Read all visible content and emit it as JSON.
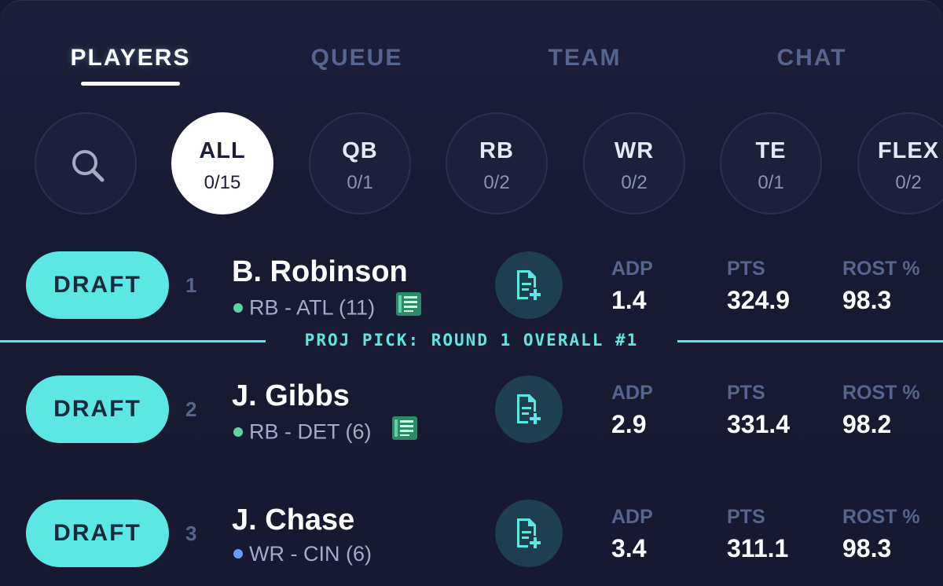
{
  "tabs": [
    {
      "label": "PLAYERS",
      "active": true
    },
    {
      "label": "QUEUE",
      "active": false
    },
    {
      "label": "TEAM",
      "active": false
    },
    {
      "label": "CHAT",
      "active": false
    }
  ],
  "filters": {
    "search_icon": "search-icon",
    "items": [
      {
        "pos": "ALL",
        "count": "0/15",
        "active": true
      },
      {
        "pos": "QB",
        "count": "0/1"
      },
      {
        "pos": "RB",
        "count": "0/2"
      },
      {
        "pos": "WR",
        "count": "0/2"
      },
      {
        "pos": "TE",
        "count": "0/1"
      },
      {
        "pos": "FLEX",
        "count": "0/2"
      }
    ]
  },
  "draft_label": "DRAFT",
  "stat_labels": {
    "adp": "ADP",
    "pts": "PTS",
    "rost": "ROST %"
  },
  "proj_pick": "PROJ PICK: ROUND 1 OVERALL #1",
  "players": [
    {
      "rank": "1",
      "name": "B. Robinson",
      "pos": "RB",
      "team": "- ATL (11)",
      "has_news": true,
      "adp": "1.4",
      "pts": "324.9",
      "rost": "98.3"
    },
    {
      "rank": "2",
      "name": "J. Gibbs",
      "pos": "RB",
      "team": "- DET (6)",
      "has_news": true,
      "adp": "2.9",
      "pts": "331.4",
      "rost": "98.2"
    },
    {
      "rank": "3",
      "name": "J. Chase",
      "pos": "WR",
      "team": "- CIN (6)",
      "has_news": false,
      "adp": "3.4",
      "pts": "311.1",
      "rost": "98.3"
    }
  ],
  "colors": {
    "accent": "#5ce6e4",
    "background": "#17192f",
    "rb_dot": "#5fd3a8",
    "wr_dot": "#6b9bff",
    "muted": "#56648e"
  }
}
